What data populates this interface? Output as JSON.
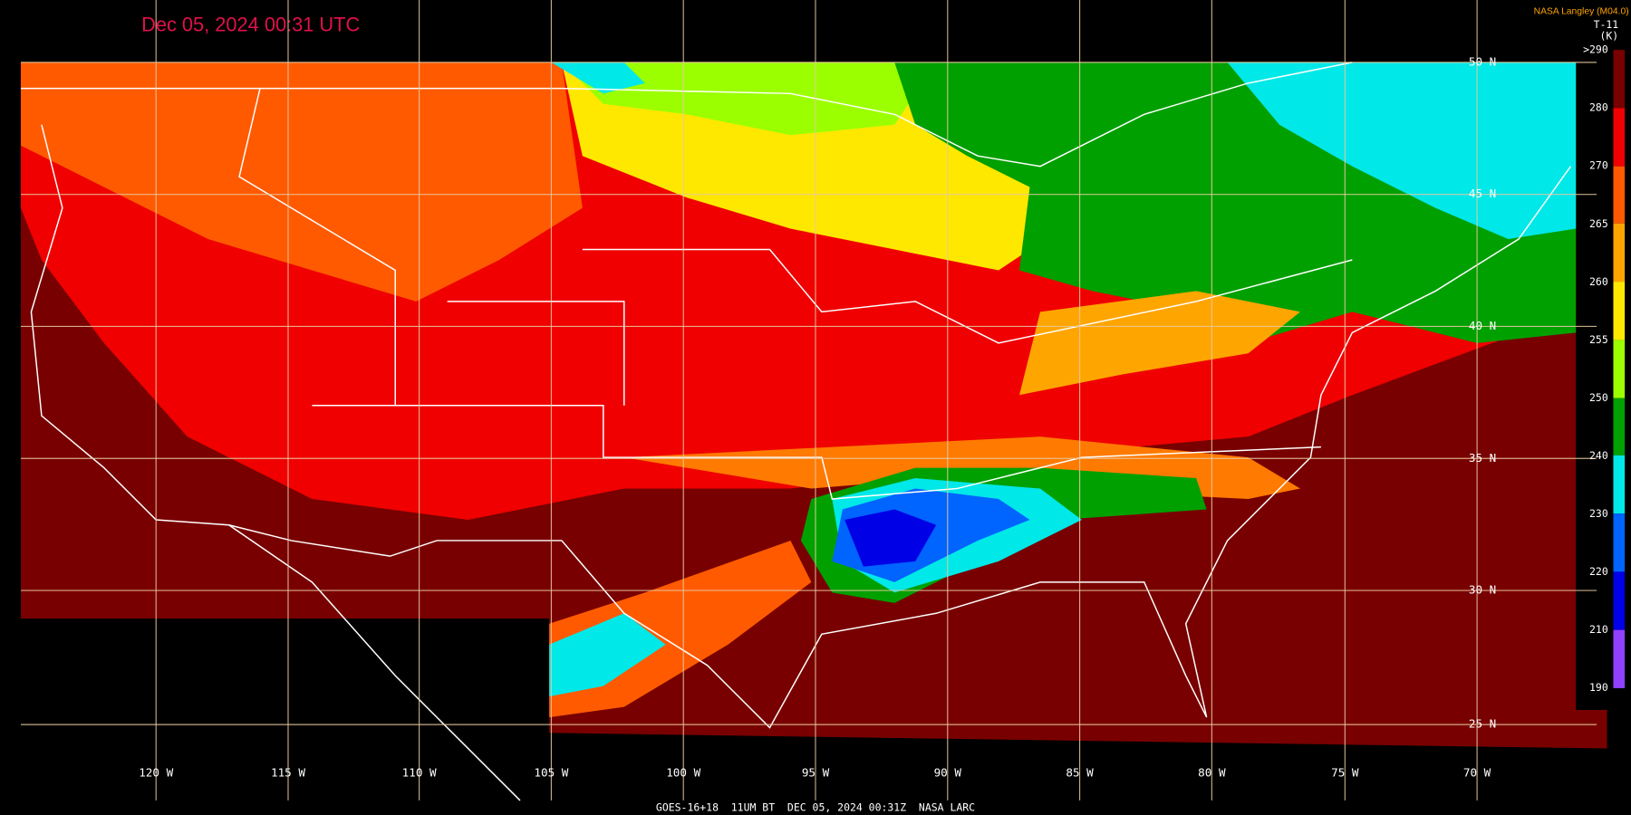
{
  "title": "Dec 05, 2024 00:31 UTC",
  "credit": "NASA Langley (M04.0)",
  "colorbar": {
    "title": "T-11",
    "unit": "(K)",
    "labels": [
      ">290",
      "280",
      "270",
      "265",
      "260",
      "255",
      "250",
      "240",
      "230",
      "220",
      "210",
      "190"
    ]
  },
  "latitude_labels": [
    "50 N",
    "45 N",
    "40 N",
    "35 N",
    "30 N",
    "25 N"
  ],
  "longitude_labels": [
    "120 W",
    "115 W",
    "110 W",
    "105 W",
    "100 W",
    "95 W",
    "90 W",
    "85 W",
    "80 W",
    "75 W",
    "70 W"
  ],
  "footer": "GOES-16+18  11UM BT  DEC 05, 2024 00:31Z  NASA LARC"
}
